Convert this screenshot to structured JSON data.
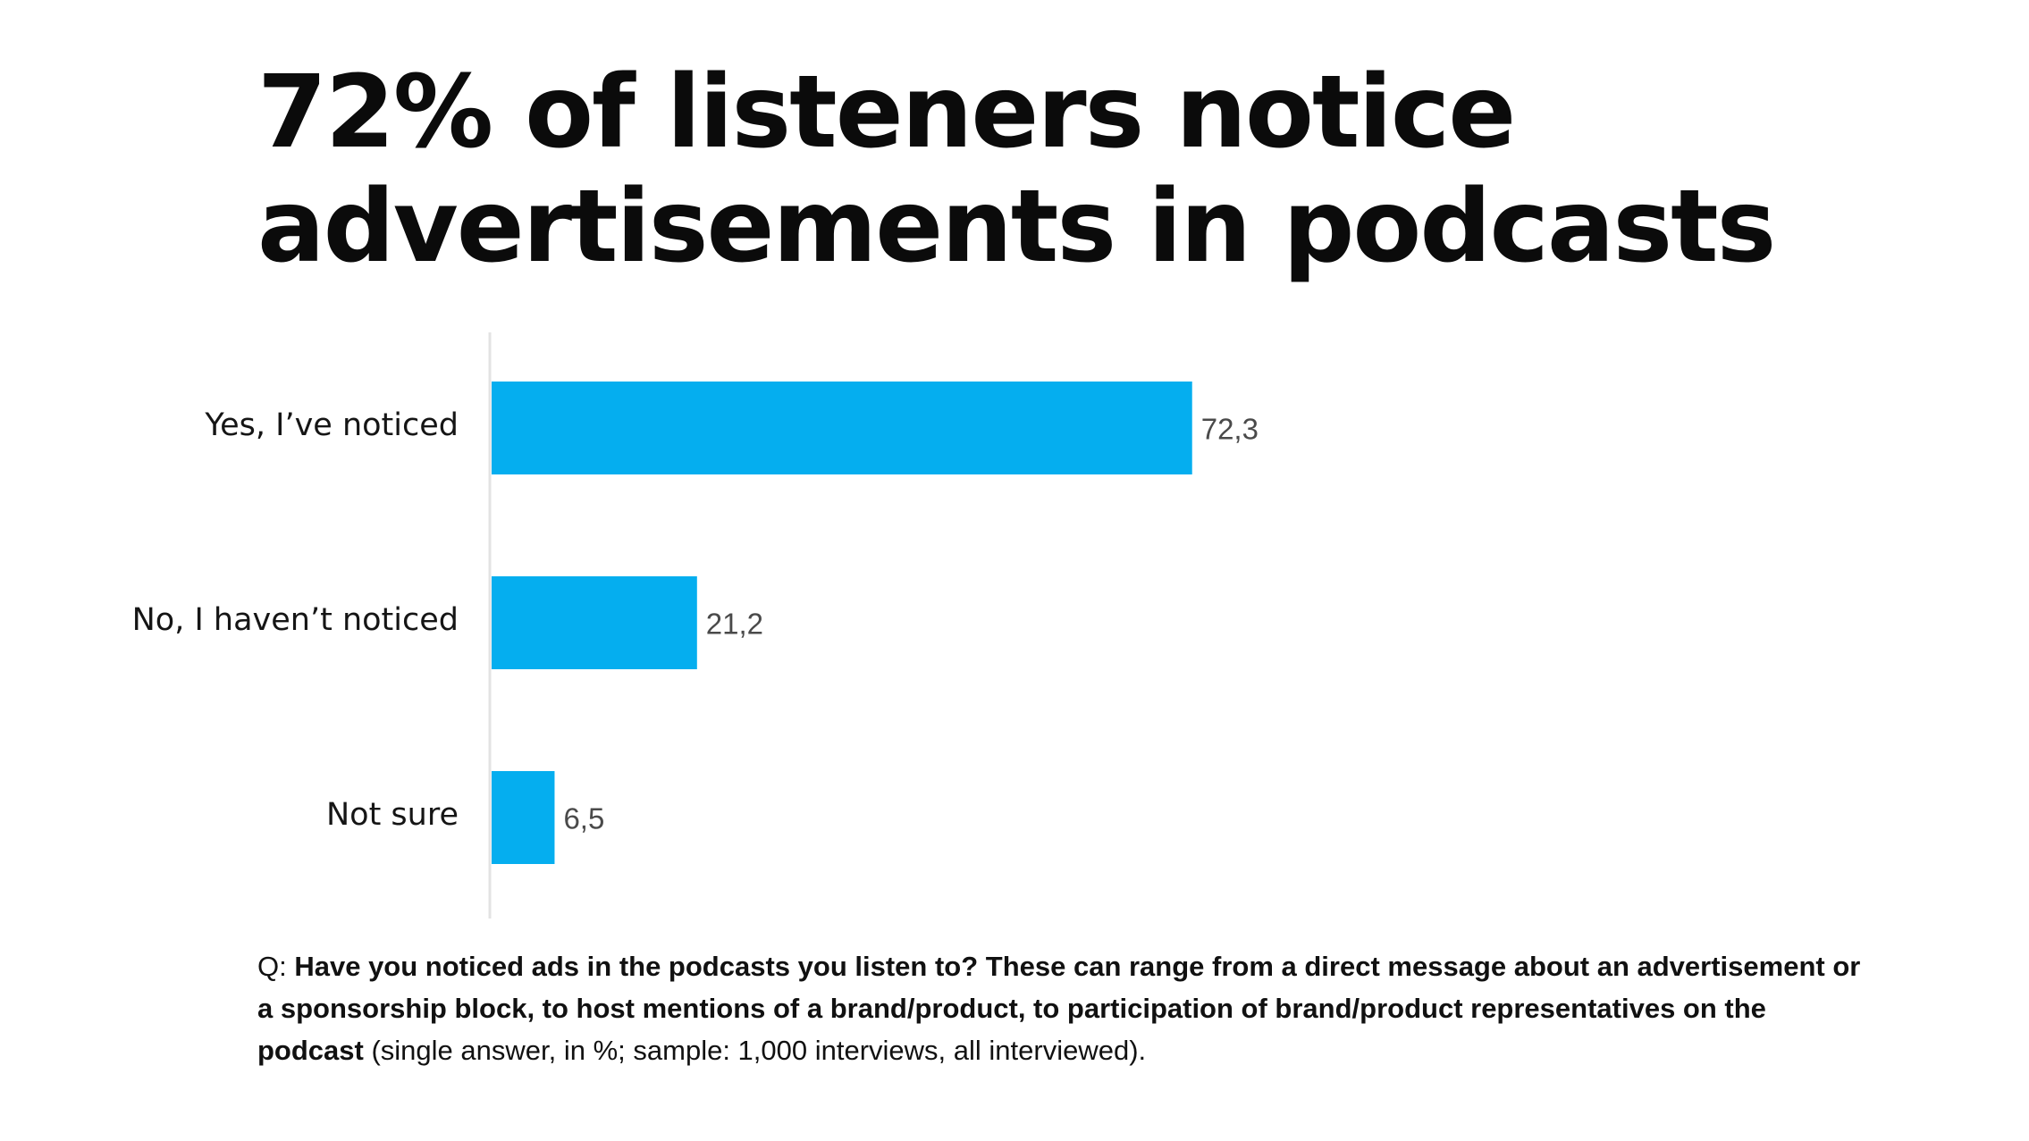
{
  "chart_data": {
    "type": "bar",
    "orientation": "horizontal",
    "title": "72% of listeners notice advertisements in podcasts",
    "title_lines": [
      "72% of listeners notice",
      "advertisements in podcasts"
    ],
    "categories": [
      "Yes, I’ve noticed",
      "No, I haven’t noticed",
      "Not sure"
    ],
    "values": [
      72.3,
      21.2,
      6.5
    ],
    "value_labels": [
      "72,3",
      "21,2",
      "6,5"
    ],
    "unit": "%",
    "xlim": [
      0,
      100
    ],
    "xlabel": "",
    "ylabel": "",
    "grid": false,
    "bar_color": "#05AEEF"
  },
  "footnote": {
    "prefix": "Q: ",
    "question": "Have you noticed ads in the podcasts you listen to? These can range from a direct message about an advertisement or a sponsorship block, to host mentions of a brand/product, to participation of brand/product representatives on the podcast",
    "details": " (single answer, in %; sample: 1,000 interviews, all interviewed)."
  }
}
